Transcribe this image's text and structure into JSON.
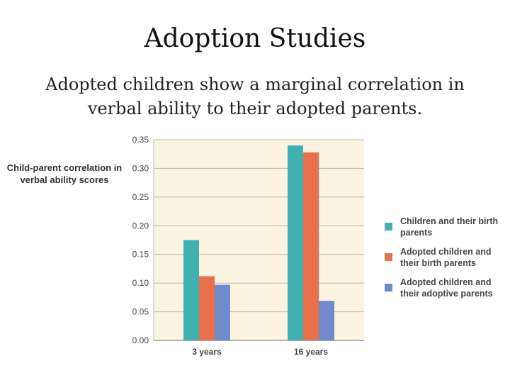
{
  "slide": {
    "title": "Adoption Studies",
    "subtitle": "Adopted children show a marginal correlation in verbal ability to their adopted parents."
  },
  "chart_data": {
    "type": "bar",
    "ylabel": "Child-parent correlation in verbal ability scores",
    "xlabel": "",
    "categories": [
      "3 years",
      "16 years"
    ],
    "ylim": [
      0,
      0.35
    ],
    "yticks": [
      "0.00",
      "0.05",
      "0.10",
      "0.15",
      "0.20",
      "0.25",
      "0.30",
      "0.35"
    ],
    "grid": true,
    "legend_position": "right",
    "plot_background": "#fdf3e1",
    "series": [
      {
        "name": "Children and their birth parents",
        "color": "#3fb1b0",
        "values": [
          0.175,
          0.34
        ]
      },
      {
        "name": "Adopted children and their birth parents",
        "color": "#e8714c",
        "values": [
          0.112,
          0.328
        ]
      },
      {
        "name": "Adopted children and their adoptive parents",
        "color": "#6f8bcc",
        "values": [
          0.097,
          0.069
        ]
      }
    ]
  }
}
